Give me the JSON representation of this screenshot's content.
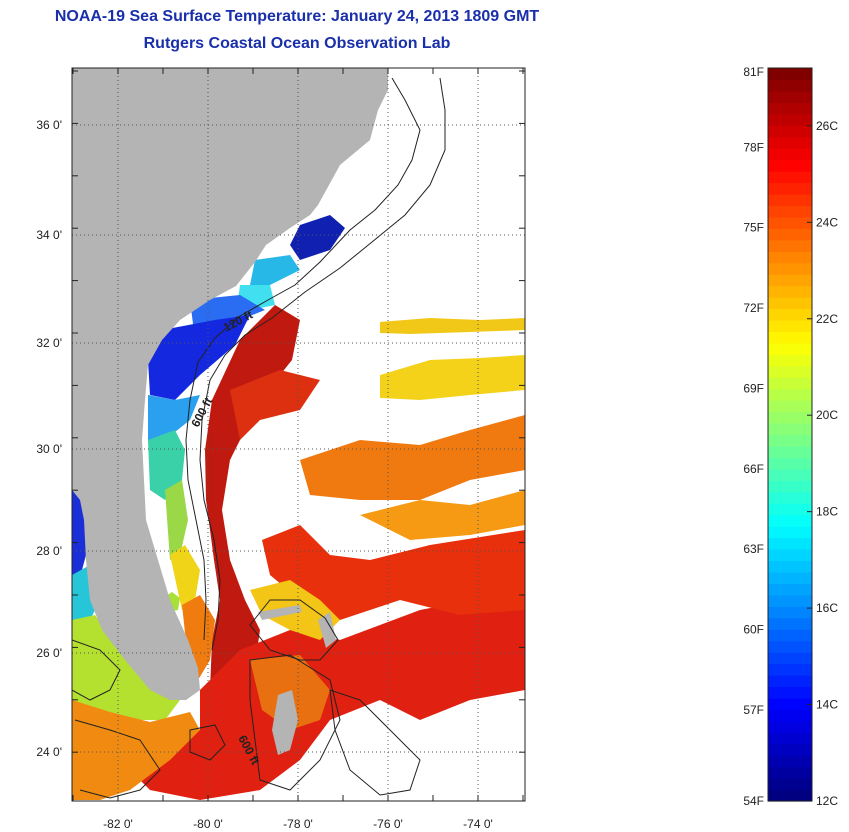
{
  "header": {
    "title": "NOAA-19 Sea Surface Temperature:  January 24, 2013 1809 GMT",
    "subtitle": "Rutgers Coastal Ocean Observation Lab"
  },
  "map": {
    "lon_range": [
      -83,
      -73
    ],
    "lat_range": [
      23,
      37
    ],
    "lat_ticks": [
      "36 0'",
      "34 0'",
      "32 0'",
      "30 0'",
      "28 0'",
      "26 0'",
      "24 0'"
    ],
    "lon_ticks": [
      "-82 0'",
      "-80 0'",
      "-78 0'",
      "-76 0'",
      "-74 0'"
    ],
    "contour_labels": [
      "120 ft",
      "600 ft",
      "600 ft"
    ],
    "land_color": "#b4b4b4",
    "grid": true
  },
  "colorbar": {
    "fahrenheit_labels": [
      "81F",
      "78F",
      "75F",
      "72F",
      "69F",
      "66F",
      "63F",
      "60F",
      "57F",
      "54F"
    ],
    "celsius_labels": [
      "26C",
      "24C",
      "22C",
      "20C",
      "18C",
      "16C",
      "14C",
      "12C"
    ],
    "range_c": [
      12,
      27.2
    ],
    "colormap": "jet"
  }
}
